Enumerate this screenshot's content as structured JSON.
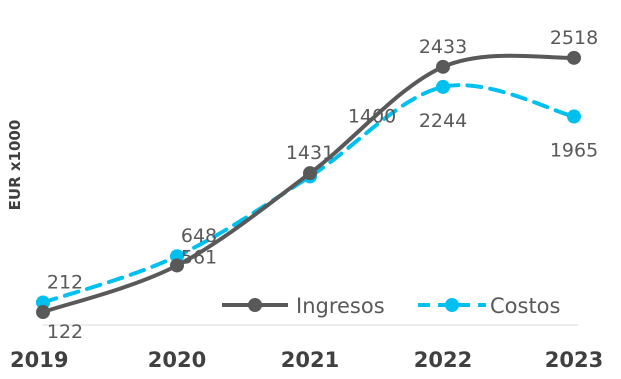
{
  "chart_data": {
    "type": "line",
    "x": [
      "2019",
      "2020",
      "2021",
      "2022",
      "2023"
    ],
    "ylabel": "EUR x1000",
    "xlabel": "",
    "ylim": [
      0,
      2700
    ],
    "grid": false,
    "legend": "bottom-right",
    "series": [
      {
        "name": "Ingresos",
        "values": [
          122,
          561,
          1431,
          2433,
          2518
        ],
        "color": "#595959",
        "style": "solid"
      },
      {
        "name": "Costos",
        "values": [
          212,
          648,
          1400,
          2244,
          1965
        ],
        "color": "#00c0f0",
        "style": "dashed"
      }
    ]
  }
}
